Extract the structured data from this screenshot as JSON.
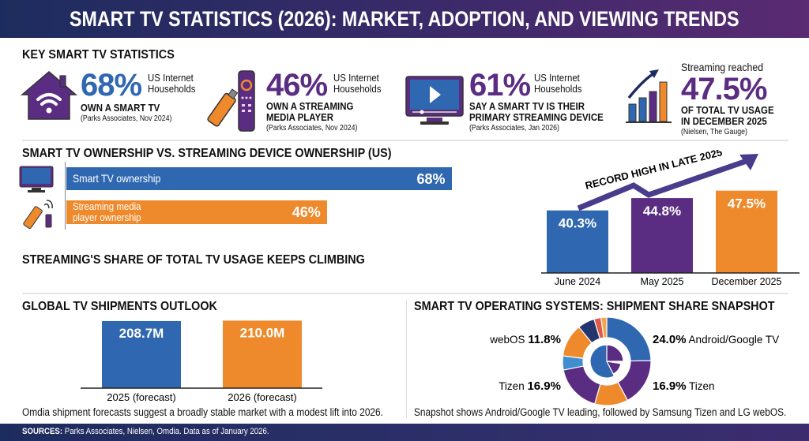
{
  "header": {
    "title": "SMART TV STATISTICS (2026): MARKET, ADOPTION, AND VIEWING TRENDS"
  },
  "key_stats": {
    "title": "KEY SMART TV STATISTICS",
    "items": [
      {
        "icon": "house-wifi-icon",
        "value": "68%",
        "unit1": "US Internet",
        "unit2": "Households",
        "label1": "OWN A SMART TV",
        "label2": "",
        "source": "(Parks Associates, Nov 2024)",
        "color": "#2f67b0"
      },
      {
        "icon": "streaming-stick-remote-icon",
        "value": "46%",
        "unit1": "US Internet",
        "unit2": "Households",
        "label1": "OWN A STREAMING",
        "label2": "MEDIA PLAYER",
        "source": "(Parks Associates, Nov 2024)",
        "color": "#5b2d82"
      },
      {
        "icon": "tv-play-icon",
        "value": "61%",
        "unit1": "US Internet",
        "unit2": "Households",
        "label1": "SAY A SMART TV IS THEIR",
        "label2": "PRIMARY STREAMING DEVICE",
        "source": "(Parks Associates, Jan 2026)",
        "color": "#5b2d82"
      },
      {
        "icon": "growth-chart-icon",
        "prefix": "Streaming reached",
        "value": "47.5%",
        "label1": "OF TOTAL TV USAGE",
        "label2": "IN DECEMBER 2025",
        "source": "(Nielsen, The Gauge)",
        "color": "#5b2d82"
      }
    ]
  },
  "colors": {
    "blue": "#2f67b0",
    "purple": "#5b2d82",
    "orange": "#ee8a2b",
    "navy": "#1d2c5e"
  },
  "ownership": {
    "title": "SMART TV OWNERSHIP VS. STREAMING DEVICE OWNERSHIP (US)"
  },
  "usage": {
    "title": "STREAMING'S SHARE OF TOTAL TV USAGE KEEPS CLIMBING",
    "annotation": "RECORD HIGH IN LATE 2025"
  },
  "shipments": {
    "title": "GLOBAL TV SHIPMENTS OUTLOOK",
    "caption": "Omdia shipment forecasts suggest a broadly stable market with a modest lift into 2026."
  },
  "os": {
    "title": "SMART TV OPERATING SYSTEMS: SHIPMENT SHARE SNAPSHOT",
    "caption": "Snapshot shows Android/Google TV leading, followed by Samsung Tizen and LG webOS."
  },
  "footer": {
    "label": "SOURCES:",
    "text": " Parks Associates, Nielsen, Omdia. Data as of January 2026."
  },
  "chart_data": [
    {
      "type": "bar",
      "orientation": "horizontal",
      "categories": [
        "Smart TV ownership",
        "Streaming media player ownership"
      ],
      "values": [
        68,
        46
      ],
      "labels": [
        "68%",
        "46%"
      ],
      "xlim": [
        0,
        100
      ],
      "colors": [
        "#2f67b0",
        "#ee8a2b"
      ]
    },
    {
      "type": "bar",
      "categories": [
        "June 2024",
        "May 2025",
        "December 2025"
      ],
      "values": [
        40.3,
        44.8,
        47.5
      ],
      "labels": [
        "40.3%",
        "44.8%",
        "47.5%"
      ],
      "ylim": [
        17.5,
        50
      ],
      "colors": [
        "#2f67b0",
        "#5b2d82",
        "#ee8a2b"
      ],
      "grid": false
    },
    {
      "type": "bar",
      "categories": [
        "2025 (forecast)",
        "2026 (forecast)"
      ],
      "values": [
        208.7,
        210.0
      ],
      "labels": [
        "208.7M",
        "210.0M"
      ],
      "ylim": [
        0,
        215
      ],
      "colors": [
        "#2f67b0",
        "#ee8a2b"
      ],
      "grid": false
    },
    {
      "type": "pie",
      "style": "donut",
      "slices": [
        {
          "name": "Android/Google TV",
          "value": 24.0,
          "label": "24.0%",
          "color": "#2f67b0"
        },
        {
          "name": "Tizen",
          "value": 16.9,
          "label": "16.9%",
          "color": "#5b2d82"
        },
        {
          "name": "Tizen",
          "value": 16.9,
          "label": "16.9%",
          "color": "#5b2d82"
        },
        {
          "name": "webOS",
          "value": 11.8,
          "label": "11.8%",
          "color": "#ee8a2b"
        }
      ]
    }
  ]
}
